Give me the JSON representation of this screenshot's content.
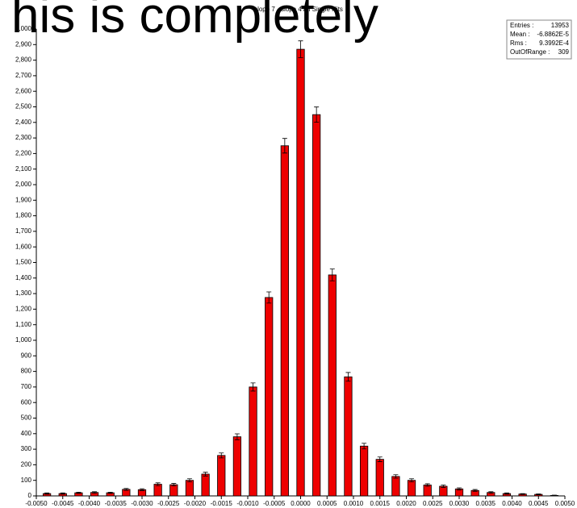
{
  "chart_data": {
    "type": "histogram",
    "title": "slope 7 - slope 4 All Single Hits",
    "overlay_text": "his is completely",
    "stats": [
      {
        "label": "Entries :",
        "value": "13953"
      },
      {
        "label": "Mean : ",
        "value": "-6.8862E-5"
      },
      {
        "label": "Rms : ",
        "value": "9.3992E-4"
      },
      {
        "label": "OutOfRange :",
        "value": "309"
      }
    ],
    "bins": [
      -0.00495,
      -0.00465,
      -0.00435,
      -0.00405,
      -0.00375,
      -0.00345,
      -0.00315,
      -0.00285,
      -0.00255,
      -0.00225,
      -0.00195,
      -0.00165,
      -0.00135,
      -0.00105,
      -0.00075,
      -0.00045,
      -0.00015,
      0.00015,
      0.00045,
      0.00075,
      0.00105,
      0.00135,
      0.00165,
      0.00195,
      0.00225,
      0.00255,
      0.00285,
      0.00315,
      0.00345,
      0.00375,
      0.00405,
      0.00435,
      0.00465,
      0.00495
    ],
    "values": [
      15,
      15,
      20,
      22,
      20,
      42,
      40,
      75,
      72,
      100,
      140,
      260,
      380,
      700,
      1275,
      2250,
      2870,
      2450,
      1420,
      765,
      320,
      235,
      125,
      100,
      70,
      62,
      45,
      35,
      22,
      15,
      12,
      10,
      3
    ],
    "errors": [
      4,
      4,
      4,
      5,
      4,
      6,
      6,
      9,
      8,
      10,
      12,
      16,
      19,
      26,
      36,
      47,
      54,
      49,
      38,
      28,
      18,
      15,
      11,
      10,
      8,
      8,
      7,
      6,
      5,
      4,
      3,
      3,
      2
    ],
    "color": "#ee0000",
    "xlim": [
      -0.005,
      0.005
    ],
    "ylim": [
      0,
      3000
    ],
    "xticks": [
      {
        "value": -0.005,
        "label": "-0.0050"
      },
      {
        "value": -0.0045,
        "label": "-0.0045"
      },
      {
        "value": -0.004,
        "label": "-0.0040"
      },
      {
        "value": -0.0035,
        "label": "-0.0035"
      },
      {
        "value": -0.003,
        "label": "-0.0030"
      },
      {
        "value": -0.0025,
        "label": "-0.0025"
      },
      {
        "value": -0.002,
        "label": "-0.0020"
      },
      {
        "value": -0.0015,
        "label": "-0.0015"
      },
      {
        "value": -0.001,
        "label": "-0.0010"
      },
      {
        "value": -0.0005,
        "label": "-0.0005"
      },
      {
        "value": 0,
        "label": "0.0000"
      },
      {
        "value": 0.0005,
        "label": "0.0005"
      },
      {
        "value": 0.001,
        "label": "0.0010"
      },
      {
        "value": 0.0015,
        "label": "0.0015"
      },
      {
        "value": 0.002,
        "label": "0.0020"
      },
      {
        "value": 0.0025,
        "label": "0.0025"
      },
      {
        "value": 0.003,
        "label": "0.0030"
      },
      {
        "value": 0.0035,
        "label": "0.0035"
      },
      {
        "value": 0.004,
        "label": "0.0040"
      },
      {
        "value": 0.0045,
        "label": "0.0045"
      },
      {
        "value": 0.005,
        "label": "0.0050"
      }
    ],
    "yticks": [
      0,
      100,
      200,
      300,
      400,
      500,
      600,
      700,
      800,
      900,
      {
        "value": 1000,
        "label": "1,000"
      },
      {
        "value": 1100,
        "label": "1,100"
      },
      {
        "value": 1200,
        "label": "1,200"
      },
      {
        "value": 1300,
        "label": "1,300"
      },
      {
        "value": 1400,
        "label": "1,400"
      },
      {
        "value": 1500,
        "label": "1,500"
      },
      {
        "value": 1600,
        "label": "1,600"
      },
      {
        "value": 1700,
        "label": "1,700"
      },
      {
        "value": 1800,
        "label": "1,800"
      },
      {
        "value": 1900,
        "label": "1,900"
      },
      {
        "value": 2000,
        "label": "2,000"
      },
      {
        "value": 2100,
        "label": "2,100"
      },
      {
        "value": 2200,
        "label": "2,200"
      },
      {
        "value": 2300,
        "label": "2,300"
      },
      {
        "value": 2400,
        "label": "2,400"
      },
      {
        "value": 2500,
        "label": "2,500"
      },
      {
        "value": 2600,
        "label": "2,600"
      },
      {
        "value": 2700,
        "label": "2,700"
      },
      {
        "value": 2800,
        "label": "2,800"
      },
      {
        "value": 2900,
        "label": "2,900"
      },
      {
        "value": 3000,
        "label": "3,000"
      }
    ]
  }
}
